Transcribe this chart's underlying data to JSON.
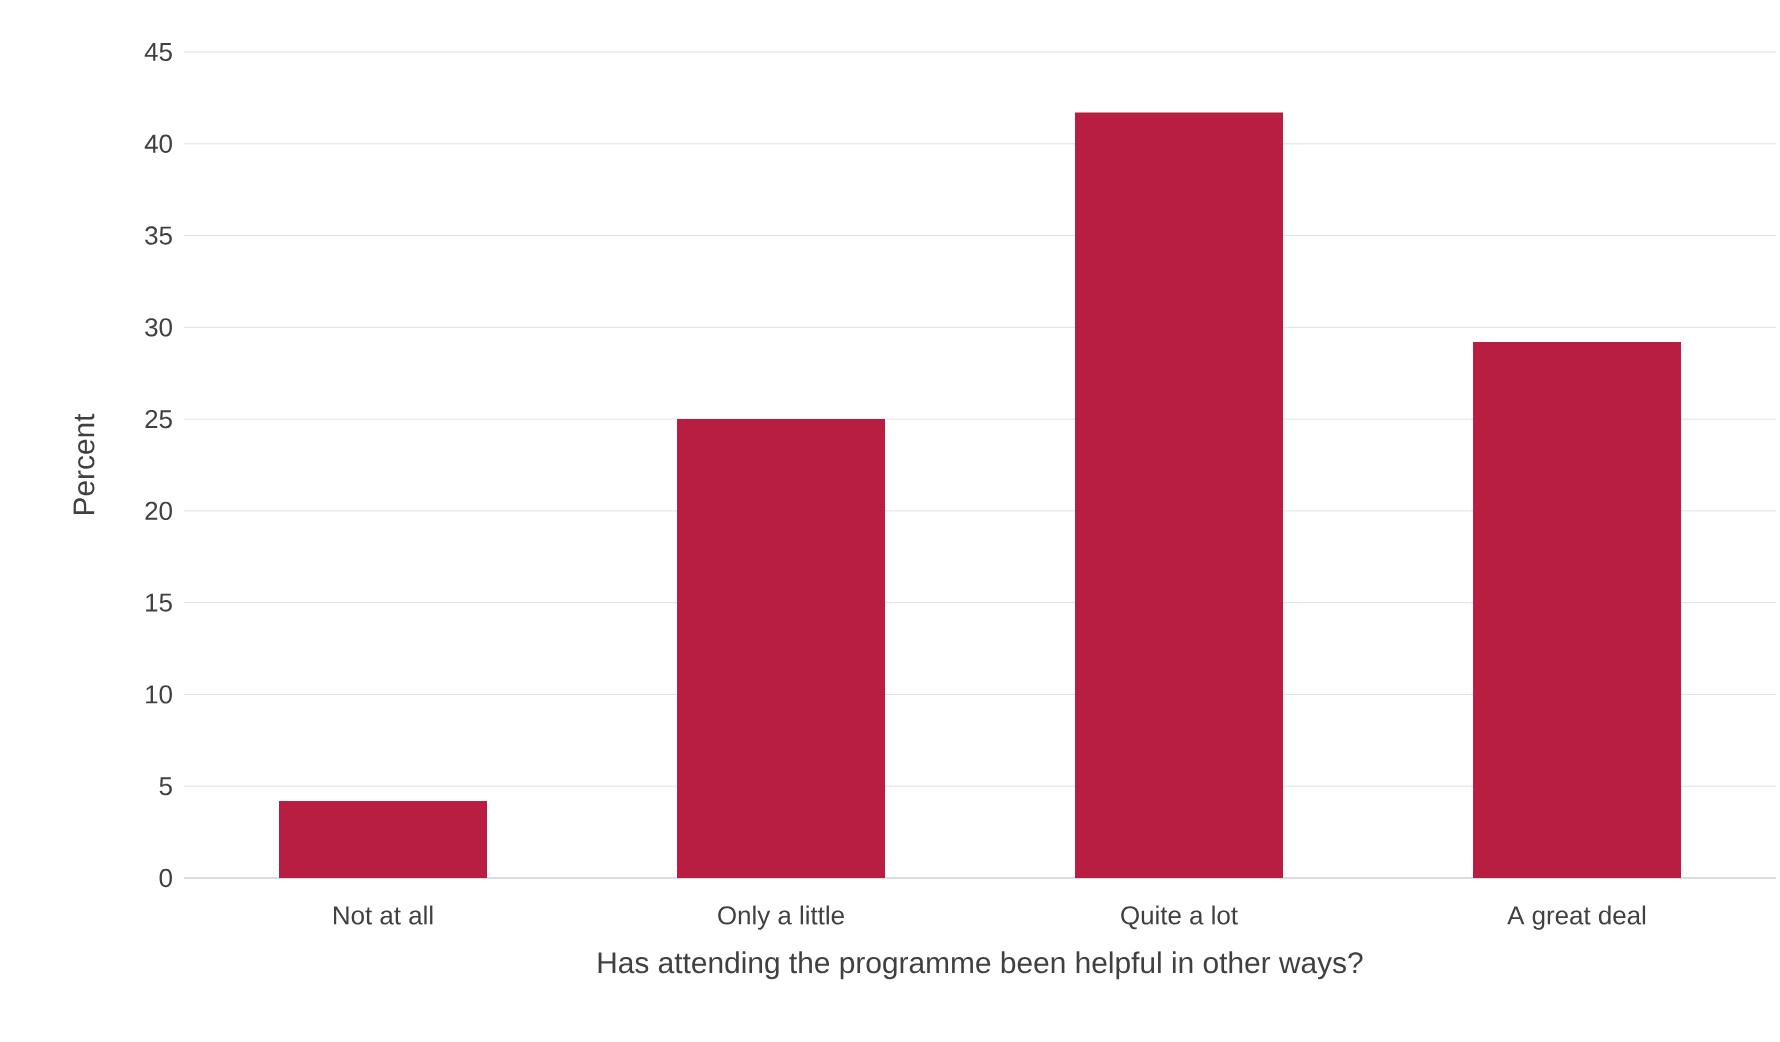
{
  "chart_data": {
    "type": "bar",
    "xlabel": "Has attending the programme been helpful in other ways?",
    "ylabel": "Percent",
    "categories": [
      "Not at all",
      "Only a little",
      "Quite a lot",
      "A great deal"
    ],
    "values": [
      4.2,
      25,
      41.7,
      29.2
    ],
    "color": "#b81e41",
    "ylim": [
      0,
      45
    ],
    "yticks": [
      0,
      5,
      10,
      15,
      20,
      25,
      30,
      35,
      40,
      45
    ],
    "grid": "y"
  }
}
